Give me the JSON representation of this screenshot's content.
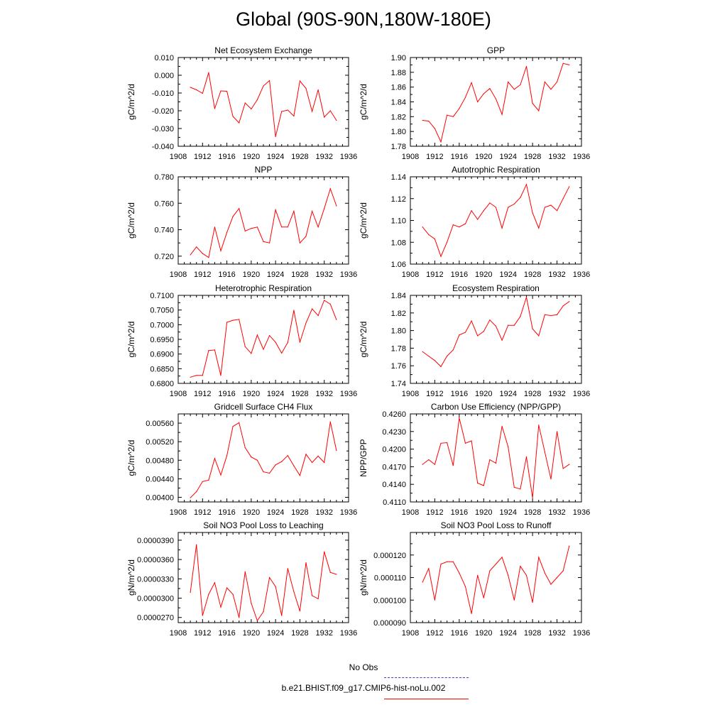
{
  "title": "Global (90S-90N,180W-180E)",
  "line_color": "#ff0000",
  "legend": [
    {
      "label": "No Obs",
      "color": "#4040c0",
      "style": "dashed"
    },
    {
      "label": "b.e21.BHIST.f09_g17.CMIP6-hist-noLu.002",
      "color": "#ff0000",
      "style": "solid"
    }
  ],
  "chart_data": [
    {
      "type": "line",
      "title": "Net Ecosystem Exchange",
      "ylabel": "gC/m^2/d",
      "xlim": [
        1908,
        1936
      ],
      "xticks": [
        "1908",
        "1912",
        "1916",
        "1920",
        "1924",
        "1928",
        "1932",
        "1936"
      ],
      "ylim": [
        -0.04,
        0.01
      ],
      "yticks": [
        "-0.040",
        "-0.030",
        "-0.020",
        "-0.010",
        "0.000",
        "0.010"
      ],
      "x": [
        1910,
        1911,
        1912,
        1913,
        1914,
        1915,
        1916,
        1917,
        1918,
        1919,
        1920,
        1921,
        1922,
        1923,
        1924,
        1925,
        1926,
        1927,
        1928,
        1929,
        1930,
        1931,
        1932,
        1933,
        1934
      ],
      "values": [
        -0.0068,
        -0.0082,
        -0.0102,
        0.0015,
        -0.0188,
        -0.0088,
        -0.009,
        -0.0232,
        -0.0268,
        -0.0156,
        -0.019,
        -0.0138,
        -0.006,
        -0.003,
        -0.0346,
        -0.0204,
        -0.0196,
        -0.023,
        -0.0032,
        -0.0074,
        -0.0204,
        -0.0082,
        -0.0236,
        -0.02,
        -0.0254
      ]
    },
    {
      "type": "line",
      "title": "GPP",
      "ylabel": "gC/m^2/d",
      "xlim": [
        1908,
        1936
      ],
      "xticks": [
        "1908",
        "1912",
        "1916",
        "1920",
        "1924",
        "1928",
        "1932",
        "1936"
      ],
      "ylim": [
        1.78,
        1.9
      ],
      "yticks": [
        "1.78",
        "1.80",
        "1.82",
        "1.84",
        "1.86",
        "1.88",
        "1.90"
      ],
      "x": [
        1910,
        1911,
        1912,
        1913,
        1914,
        1915,
        1916,
        1917,
        1918,
        1919,
        1920,
        1921,
        1922,
        1923,
        1924,
        1925,
        1926,
        1927,
        1928,
        1929,
        1930,
        1931,
        1932,
        1933,
        1934
      ],
      "values": [
        1.815,
        1.814,
        1.804,
        1.786,
        1.822,
        1.82,
        1.831,
        1.846,
        1.866,
        1.84,
        1.851,
        1.858,
        1.844,
        1.823,
        1.867,
        1.857,
        1.863,
        1.888,
        1.838,
        1.828,
        1.867,
        1.857,
        1.867,
        1.892,
        1.89
      ]
    },
    {
      "type": "line",
      "title": "NPP",
      "ylabel": "gC/m^2/d",
      "xlim": [
        1908,
        1936
      ],
      "xticks": [
        "1908",
        "1912",
        "1916",
        "1920",
        "1924",
        "1928",
        "1932",
        "1936"
      ],
      "ylim": [
        0.714,
        0.78
      ],
      "yticks": [
        "0.720",
        "0.740",
        "0.760",
        "0.780"
      ],
      "x": [
        1910,
        1911,
        1912,
        1913,
        1914,
        1915,
        1916,
        1917,
        1918,
        1919,
        1920,
        1921,
        1922,
        1923,
        1924,
        1925,
        1926,
        1927,
        1928,
        1929,
        1930,
        1931,
        1932,
        1933,
        1934
      ],
      "values": [
        0.721,
        0.727,
        0.722,
        0.719,
        0.742,
        0.724,
        0.738,
        0.75,
        0.756,
        0.739,
        0.741,
        0.742,
        0.731,
        0.73,
        0.755,
        0.742,
        0.742,
        0.754,
        0.73,
        0.735,
        0.754,
        0.742,
        0.756,
        0.771,
        0.758
      ]
    },
    {
      "type": "line",
      "title": "Autotrophic Respiration",
      "ylabel": "gC/m^2/d",
      "xlim": [
        1908,
        1936
      ],
      "xticks": [
        "1908",
        "1912",
        "1916",
        "1920",
        "1924",
        "1928",
        "1932",
        "1936"
      ],
      "ylim": [
        1.06,
        1.14
      ],
      "yticks": [
        "1.06",
        "1.08",
        "1.10",
        "1.12",
        "1.14"
      ],
      "x": [
        1910,
        1911,
        1912,
        1913,
        1914,
        1915,
        1916,
        1917,
        1918,
        1919,
        1920,
        1921,
        1922,
        1923,
        1924,
        1925,
        1926,
        1927,
        1928,
        1929,
        1930,
        1931,
        1932,
        1933,
        1934
      ],
      "values": [
        1.094,
        1.087,
        1.083,
        1.067,
        1.08,
        1.096,
        1.094,
        1.097,
        1.109,
        1.101,
        1.109,
        1.116,
        1.112,
        1.093,
        1.112,
        1.115,
        1.121,
        1.133,
        1.107,
        1.093,
        1.112,
        1.114,
        1.109,
        1.12,
        1.131
      ]
    },
    {
      "type": "line",
      "title": "Heterotrophic Respiration",
      "ylabel": "gC/m^2/d",
      "xlim": [
        1908,
        1936
      ],
      "xticks": [
        "1908",
        "1912",
        "1916",
        "1920",
        "1924",
        "1928",
        "1932",
        "1936"
      ],
      "ylim": [
        0.68,
        0.71
      ],
      "yticks": [
        "0.6800",
        "0.6850",
        "0.6900",
        "0.6950",
        "0.7000",
        "0.7050",
        "0.7100"
      ],
      "x": [
        1910,
        1911,
        1912,
        1913,
        1914,
        1915,
        1916,
        1917,
        1918,
        1919,
        1920,
        1921,
        1922,
        1923,
        1924,
        1925,
        1926,
        1927,
        1928,
        1929,
        1930,
        1931,
        1932,
        1933,
        1934
      ],
      "values": [
        0.6821,
        0.6827,
        0.6827,
        0.6912,
        0.6914,
        0.6827,
        0.7008,
        0.7015,
        0.7018,
        0.6925,
        0.6902,
        0.6965,
        0.6916,
        0.6963,
        0.694,
        0.6903,
        0.6939,
        0.7049,
        0.694,
        0.7006,
        0.7054,
        0.7031,
        0.7083,
        0.707,
        0.7017
      ]
    },
    {
      "type": "line",
      "title": "Ecosystem Respiration",
      "ylabel": "gC/m^2/d",
      "xlim": [
        1908,
        1936
      ],
      "xticks": [
        "1908",
        "1912",
        "1916",
        "1920",
        "1924",
        "1928",
        "1932",
        "1936"
      ],
      "ylim": [
        1.74,
        1.84
      ],
      "yticks": [
        "1.74",
        "1.76",
        "1.78",
        "1.80",
        "1.82",
        "1.84"
      ],
      "x": [
        1910,
        1911,
        1912,
        1913,
        1914,
        1915,
        1916,
        1917,
        1918,
        1919,
        1920,
        1921,
        1922,
        1923,
        1924,
        1925,
        1926,
        1927,
        1928,
        1929,
        1930,
        1931,
        1932,
        1933,
        1934
      ],
      "values": [
        1.776,
        1.771,
        1.766,
        1.759,
        1.771,
        1.778,
        1.795,
        1.798,
        1.811,
        1.794,
        1.799,
        1.812,
        1.805,
        1.789,
        1.806,
        1.806,
        1.816,
        1.838,
        1.802,
        1.794,
        1.818,
        1.817,
        1.818,
        1.828,
        1.833
      ]
    },
    {
      "type": "line",
      "title": "Gridcell Surface CH4 Flux",
      "ylabel": "gC/m^2/d",
      "xlim": [
        1908,
        1936
      ],
      "xticks": [
        "1908",
        "1912",
        "1916",
        "1920",
        "1924",
        "1928",
        "1932",
        "1936"
      ],
      "ylim": [
        0.0039,
        0.0058
      ],
      "yticks": [
        "0.00400",
        "0.00440",
        "0.00480",
        "0.00520",
        "0.00560"
      ],
      "x": [
        1910,
        1911,
        1912,
        1913,
        1914,
        1915,
        1916,
        1917,
        1918,
        1919,
        1920,
        1921,
        1922,
        1923,
        1924,
        1925,
        1926,
        1927,
        1928,
        1929,
        1930,
        1931,
        1932,
        1933,
        1934
      ],
      "values": [
        0.00399,
        0.00412,
        0.00434,
        0.00437,
        0.00484,
        0.00448,
        0.0049,
        0.00553,
        0.00561,
        0.00507,
        0.00487,
        0.0048,
        0.00455,
        0.00452,
        0.0047,
        0.00477,
        0.0049,
        0.00468,
        0.00447,
        0.00493,
        0.00475,
        0.00489,
        0.00475,
        0.00563,
        0.00501
      ]
    },
    {
      "type": "line",
      "title": "Carbon Use Efficiency (NPP/GPP)",
      "ylabel": "NPP/GPP",
      "xlim": [
        1908,
        1936
      ],
      "xticks": [
        "1908",
        "1912",
        "1916",
        "1920",
        "1924",
        "1928",
        "1932",
        "1936"
      ],
      "ylim": [
        0.411,
        0.426
      ],
      "yticks": [
        "0.4110",
        "0.4140",
        "0.4170",
        "0.4200",
        "0.4230",
        "0.4260"
      ],
      "x": [
        1910,
        1911,
        1912,
        1913,
        1914,
        1915,
        1916,
        1917,
        1918,
        1919,
        1920,
        1921,
        1922,
        1923,
        1924,
        1925,
        1926,
        1927,
        1928,
        1929,
        1930,
        1931,
        1932,
        1933,
        1934
      ],
      "values": [
        0.4174,
        0.4182,
        0.4174,
        0.421,
        0.4211,
        0.4172,
        0.4253,
        0.421,
        0.4214,
        0.4142,
        0.4138,
        0.4182,
        0.4176,
        0.4239,
        0.4204,
        0.4135,
        0.4132,
        0.4187,
        0.4117,
        0.4241,
        0.4195,
        0.4149,
        0.423,
        0.4167,
        0.4174
      ]
    },
    {
      "type": "line",
      "title": "Soil NO3 Pool Loss to Leaching",
      "ylabel": "gN/m^2/d",
      "xlim": [
        1908,
        1936
      ],
      "xticks": [
        "1908",
        "1912",
        "1916",
        "1920",
        "1924",
        "1928",
        "1932",
        "1936"
      ],
      "ylim": [
        2.62e-05,
        4.02e-05
      ],
      "yticks": [
        "0.0000270",
        "0.0000300",
        "0.0000330",
        "0.0000360",
        "0.0000390"
      ],
      "x": [
        1910,
        1911,
        1912,
        1913,
        1914,
        1915,
        1916,
        1917,
        1918,
        1919,
        1920,
        1921,
        1922,
        1923,
        1924,
        1925,
        1926,
        1927,
        1928,
        1929,
        1930,
        1931,
        1932,
        1933,
        1934
      ],
      "values": [
        3.09e-05,
        3.83e-05,
        2.73e-05,
        3.06e-05,
        3.24e-05,
        2.86e-05,
        3.16e-05,
        3.06e-05,
        2.7e-05,
        3.41e-05,
        2.92e-05,
        2.65e-05,
        2.79e-05,
        3.32e-05,
        3.18e-05,
        2.73e-05,
        3.46e-05,
        3.1e-05,
        2.8e-05,
        3.55e-05,
        3.04e-05,
        2.99e-05,
        3.72e-05,
        3.4e-05,
        3.37e-05
      ]
    },
    {
      "type": "line",
      "title": "Soil NO3 Pool Loss to Runoff",
      "ylabel": "gN/m^2/d",
      "xlim": [
        1908,
        1936
      ],
      "xticks": [
        "1908",
        "1912",
        "1916",
        "1920",
        "1924",
        "1928",
        "1932",
        "1936"
      ],
      "ylim": [
        9e-05,
        0.00013
      ],
      "yticks": [
        "0.000090",
        "0.000100",
        "0.000110",
        "0.000120"
      ],
      "x": [
        1910,
        1911,
        1912,
        1913,
        1914,
        1915,
        1916,
        1917,
        1918,
        1919,
        1920,
        1921,
        1922,
        1923,
        1924,
        1925,
        1926,
        1927,
        1928,
        1929,
        1930,
        1931,
        1932,
        1933,
        1934
      ],
      "values": [
        0.000108,
        0.000114,
        0.0001,
        0.000116,
        0.000117,
        0.000117,
        0.000112,
        0.000106,
        9.4e-05,
        0.000111,
        0.000101,
        0.000113,
        0.000116,
        0.000119,
        0.000111,
        0.0001,
        0.000115,
        0.000111,
        9.9e-05,
        0.000119,
        0.000112,
        0.000107,
        0.00011,
        0.000113,
        0.000124
      ]
    }
  ]
}
